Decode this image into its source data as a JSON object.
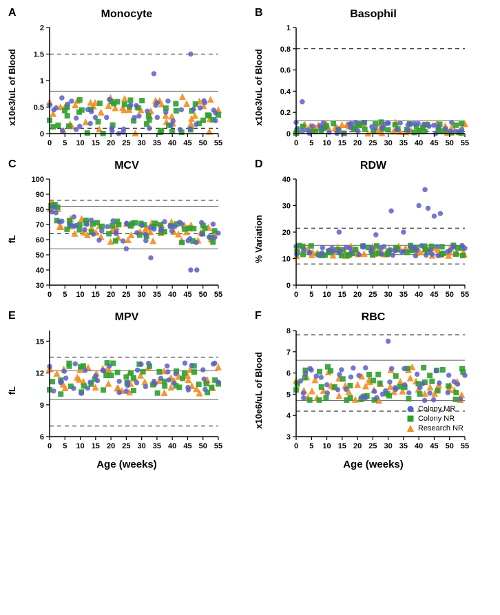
{
  "global": {
    "x_axis": {
      "min": 0,
      "max": 55,
      "ticks": [
        0,
        5,
        10,
        15,
        20,
        25,
        30,
        35,
        40,
        45,
        50,
        55
      ],
      "label": "Age (weeks)"
    },
    "colors": {
      "colony_mr": "#5b60c4",
      "colony_nr": "#2f9e2f",
      "research_nr": "#f48c1e",
      "axis": "#000000",
      "solid_ref": "#606060",
      "background": "#ffffff"
    },
    "legend": [
      {
        "label": "Colony MR",
        "marker": "circle",
        "color": "#5b60c4"
      },
      {
        "label": "Colony NR",
        "marker": "square",
        "color": "#2f9e2f"
      },
      {
        "label": "Research NR",
        "marker": "triangle",
        "color": "#f48c1e"
      }
    ],
    "marker_size": 5,
    "tick_fontsize": 11,
    "axis_fontsize": 13,
    "title_fontsize": 16
  },
  "panels": [
    {
      "id": "A",
      "title": "Monocyte",
      "ylabel": "x10e3/uL of Blood",
      "ymin": 0,
      "ymax": 2.0,
      "yticks": [
        0,
        0.5,
        1.0,
        1.5,
        2.0
      ],
      "dashed": [
        0.1,
        1.5
      ],
      "solid": [
        0.8
      ],
      "seed": 1,
      "ybase": 0.35,
      "yspread": 0.35,
      "n": 45,
      "outliers": [
        [
          46,
          1.5
        ],
        [
          34,
          1.13
        ]
      ]
    },
    {
      "id": "B",
      "title": "Basophil",
      "ylabel": "x10e3/uL of Blood",
      "ymin": 0,
      "ymax": 1.0,
      "yticks": [
        0,
        0.2,
        0.4,
        0.6,
        0.8,
        1.0
      ],
      "dashed": [
        0.8,
        0.02
      ],
      "solid": [
        0.12
      ],
      "seed": 2,
      "ybase": 0.05,
      "yspread": 0.06,
      "n": 45,
      "outliers": [
        [
          2,
          0.3
        ]
      ]
    },
    {
      "id": "C",
      "title": "MCV",
      "ylabel": "fL",
      "ymin": 30,
      "ymax": 100,
      "yticks": [
        30,
        40,
        50,
        60,
        70,
        80,
        90,
        100
      ],
      "dashed": [
        64,
        86
      ],
      "solid": [
        54,
        82
      ],
      "seed": 3,
      "ybase": 68,
      "yspread": 7,
      "n": 45,
      "decay": true,
      "outliers": [
        [
          33,
          48
        ],
        [
          46,
          40
        ],
        [
          48,
          40
        ],
        [
          25,
          54
        ]
      ]
    },
    {
      "id": "D",
      "title": "RDW",
      "ylabel": "% Variation",
      "ymin": 0,
      "ymax": 40,
      "yticks": [
        0,
        10,
        20,
        30,
        40
      ],
      "dashed": [
        8,
        21.5
      ],
      "solid": [
        11.5,
        15
      ],
      "seed": 4,
      "ybase": 13,
      "yspread": 2,
      "n": 45,
      "outliers": [
        [
          42,
          36
        ],
        [
          43,
          29
        ],
        [
          31,
          28
        ],
        [
          40,
          30
        ],
        [
          45,
          26
        ],
        [
          47,
          27
        ],
        [
          35,
          20
        ],
        [
          14,
          20
        ],
        [
          26,
          19
        ]
      ]
    },
    {
      "id": "E",
      "title": "MPV",
      "ylabel": "fL",
      "ymin": 6,
      "ymax": 16,
      "yticks": [
        6,
        9,
        12,
        15
      ],
      "dashed": [
        7,
        13.5
      ],
      "solid": [
        9.5,
        12.2
      ],
      "seed": 5,
      "ybase": 11.5,
      "yspread": 1.5,
      "n": 45,
      "outliers": []
    },
    {
      "id": "F",
      "title": "RBC",
      "ylabel": "x10e6/uL of Blood",
      "ymin": 3,
      "ymax": 8,
      "yticks": [
        3,
        4,
        5,
        6,
        7,
        8
      ],
      "dashed": [
        4.2,
        7.8
      ],
      "solid": [
        4.7,
        6.6
      ],
      "seed": 6,
      "ybase": 5.5,
      "yspread": 0.8,
      "n": 45,
      "outliers": [
        [
          30,
          7.5
        ]
      ],
      "show_legend": true
    }
  ]
}
